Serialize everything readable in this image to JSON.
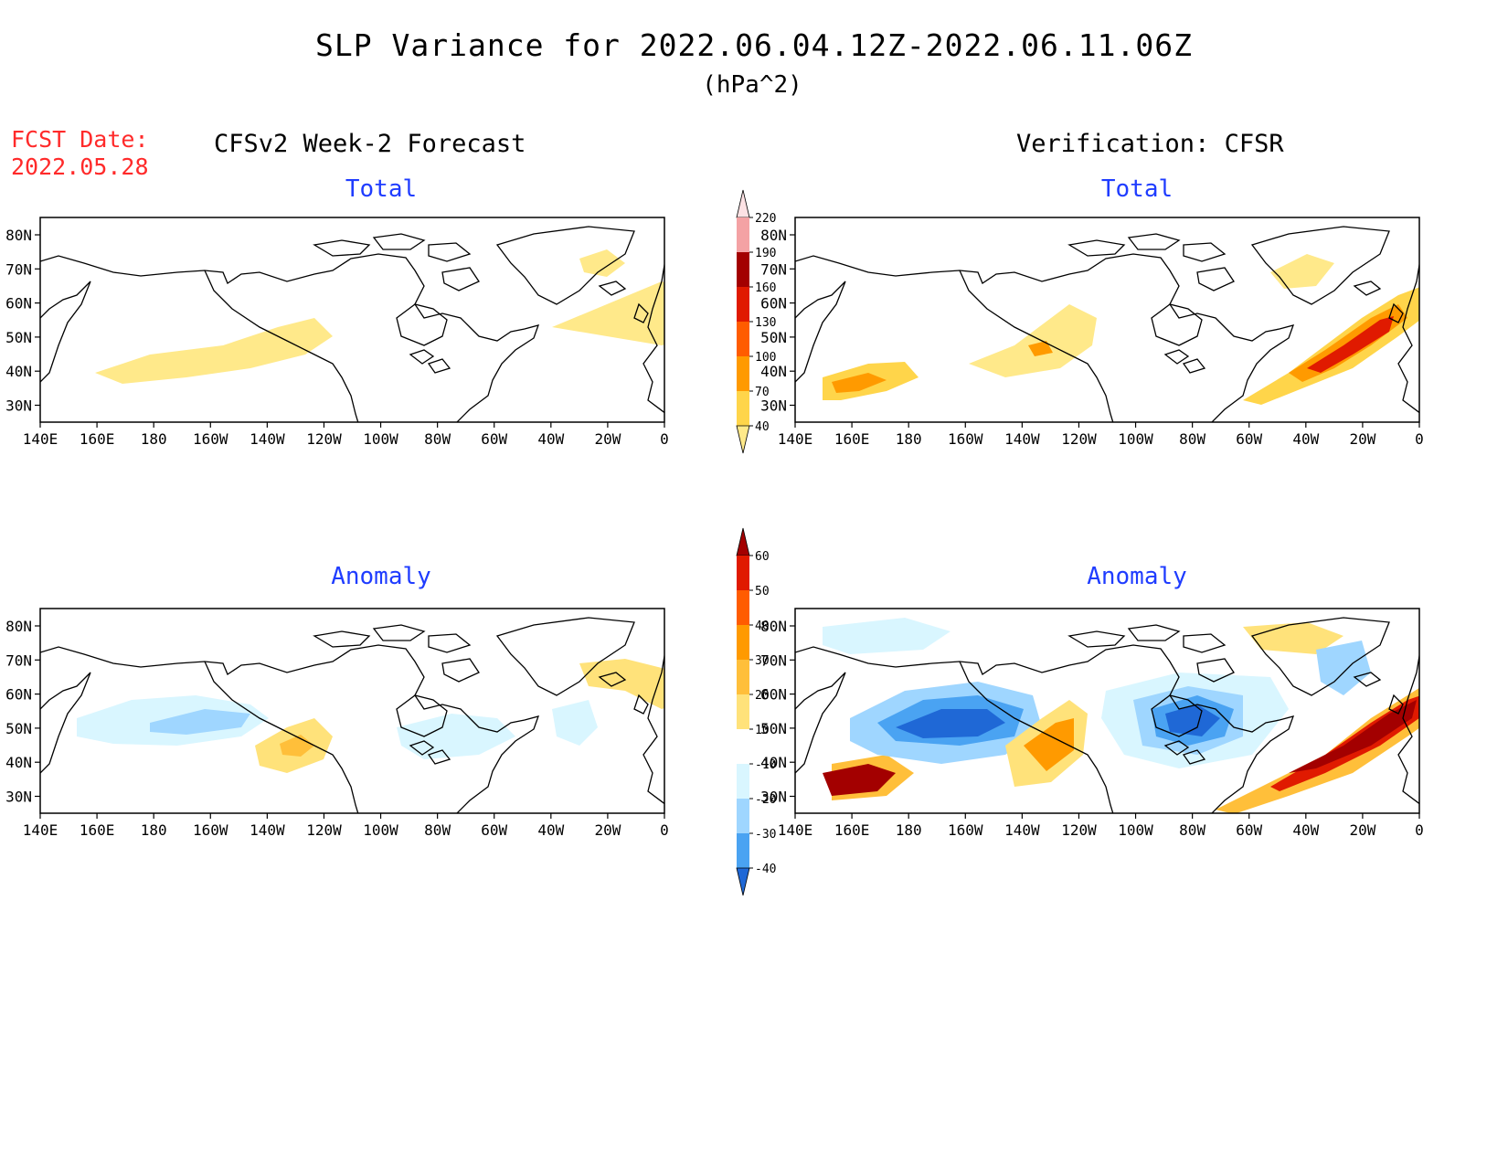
{
  "header": {
    "title": "SLP Variance for 2022.06.04.12Z-2022.06.11.06Z",
    "units": "(hPa^2)",
    "fcst_label": "FCST Date:",
    "fcst_date": "2022.05.28"
  },
  "columns": {
    "left": "CFSv2 Week-2 Forecast",
    "right": "Verification: CFSR"
  },
  "panels": {
    "total_label": "Total",
    "anomaly_label": "Anomaly"
  },
  "axes": {
    "lon_ticks": [
      "140E",
      "160E",
      "180",
      "160W",
      "140W",
      "120W",
      "100W",
      "80W",
      "60W",
      "40W",
      "20W",
      "0"
    ],
    "lat_ticks_total": [
      "80N",
      "70N",
      "60N",
      "50N",
      "40N",
      "30N"
    ],
    "lat_ticks_anom": [
      "80N",
      "70N",
      "60N",
      "50N",
      "40N",
      "30N"
    ]
  },
  "colorbars": {
    "total": {
      "levels": [
        "220",
        "190",
        "160",
        "130",
        "100",
        "70",
        "40"
      ],
      "colors": [
        "#fde2e4",
        "#f4a2a4",
        "#a30000",
        "#e01a00",
        "#ff5c00",
        "#ff9a00",
        "#ffd54a",
        "#ffe98a"
      ]
    },
    "anomaly": {
      "levels": [
        "60",
        "50",
        "40",
        "30",
        "20",
        "10",
        "-10",
        "-20",
        "-30",
        "-40"
      ],
      "colors": [
        "#a30000",
        "#e01a00",
        "#ff5c00",
        "#ff9a00",
        "#ffbf3a",
        "#ffe27a",
        "#ffffff",
        "#d9f6ff",
        "#9fd6ff",
        "#4aa3f2",
        "#1f68d6"
      ]
    }
  },
  "chart_data": [
    {
      "type": "heatmap",
      "panel": "CFSv2 Week-2 Forecast - Total",
      "units": "hPa^2",
      "xlim": [
        "140E",
        "0"
      ],
      "ylim": [
        "25N",
        "85N"
      ],
      "features": [
        {
          "region": "North Pacific 40N-50N, 160E-140W",
          "level": "40-70"
        },
        {
          "region": "Greenland / North Atlantic 55N-70N, 40W-10W",
          "level": "40-70"
        }
      ]
    },
    {
      "type": "heatmap",
      "panel": "Verification: CFSR - Total",
      "units": "hPa^2",
      "xlim": [
        "140E",
        "0"
      ],
      "ylim": [
        "25N",
        "85N"
      ],
      "features": [
        {
          "region": "West Pacific 35N-40N, 140E-160E",
          "level": "70-130"
        },
        {
          "region": "Gulf of Alaska 45N-55N, 150W-120W",
          "level": "40-100"
        },
        {
          "region": "North Atlantic storm track 40N-60N, 60W-10W",
          "level": "70-190"
        }
      ]
    },
    {
      "type": "heatmap",
      "panel": "CFSv2 Week-2 Forecast - Anomaly",
      "units": "hPa^2",
      "xlim": [
        "140E",
        "0"
      ],
      "ylim": [
        "25N",
        "85N"
      ],
      "features": [
        {
          "region": "North Pacific 45N-55N, 160E-160W",
          "level": "-10 to -20"
        },
        {
          "region": "NE Pacific 40N-50N, 150W-130W",
          "level": "10-30"
        },
        {
          "region": "Greenland 65N-70N",
          "level": "10-20"
        }
      ]
    },
    {
      "type": "heatmap",
      "panel": "Verification: CFSR - Anomaly",
      "units": "hPa^2",
      "xlim": [
        "140E",
        "0"
      ],
      "ylim": [
        "25N",
        "85N"
      ],
      "features": [
        {
          "region": "West Pacific 35N-40N, 140E-155E",
          "level": "50-60+"
        },
        {
          "region": "North Pacific 45N-60N, 170E-150W",
          "level": "-30 to -40"
        },
        {
          "region": "Pacific NW 40N-60N, 140W-120W",
          "level": "20-40"
        },
        {
          "region": "Great Lakes / Hudson Bay 45N-60N, 100W-80W",
          "level": "-30 to -40"
        },
        {
          "region": "North Atlantic 30N-60N, 70W-10W",
          "level": "50-60+"
        }
      ]
    }
  ]
}
